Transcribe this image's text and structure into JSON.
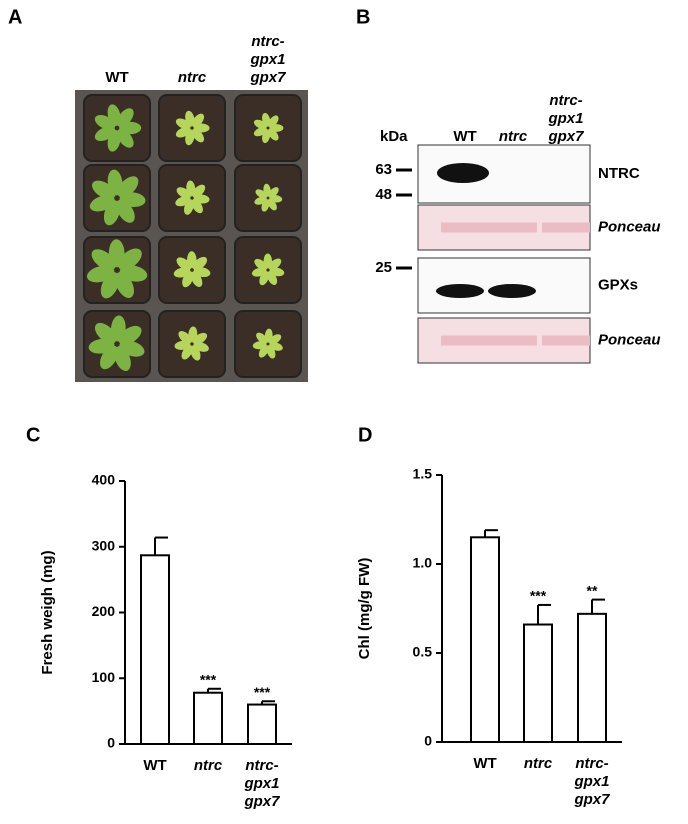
{
  "panel_labels": [
    "A",
    "B",
    "C",
    "D"
  ],
  "photo": {
    "columns": [
      [
        "WT"
      ],
      [
        "ntrc"
      ],
      [
        "ntrc-",
        "gpx1",
        "gpx7"
      ]
    ]
  },
  "blot": {
    "unit": "kDa",
    "lanes": [
      [
        "WT"
      ],
      [
        "ntrc"
      ],
      [
        "ntrc-",
        "gpx1",
        "gpx7"
      ]
    ],
    "markers": [
      "63",
      "48",
      "25"
    ],
    "rows": [
      "NTRC",
      "Ponceau",
      "GPXs",
      "Ponceau"
    ]
  },
  "chart_data": [
    {
      "type": "bar",
      "y_label": "Fresh weigh (mg)",
      "categories": [
        [
          "WT"
        ],
        [
          "ntrc"
        ],
        [
          "ntrc-",
          "gpx1",
          "gpx7"
        ]
      ],
      "values": [
        287,
        78,
        60
      ],
      "errors": [
        27,
        6,
        5
      ],
      "annotations": [
        null,
        "***",
        "***"
      ],
      "ylim": [
        0,
        400
      ],
      "yticks": [
        0,
        100,
        200,
        300,
        400
      ],
      "color": "#ffffff"
    },
    {
      "type": "bar",
      "y_label": "Chl (mg/g FW)",
      "categories": [
        [
          "WT"
        ],
        [
          "ntrc"
        ],
        [
          "ntrc-",
          "gpx1",
          "gpx7"
        ]
      ],
      "values": [
        1.15,
        0.66,
        0.72
      ],
      "errors": [
        0.04,
        0.11,
        0.08
      ],
      "annotations": [
        null,
        "***",
        "**"
      ],
      "ylim": [
        0,
        1.5
      ],
      "yticks": [
        0,
        0.5,
        {
          "value": 1,
          "label": "1.0"
        },
        1.5
      ],
      "color": "#ffffff"
    }
  ]
}
